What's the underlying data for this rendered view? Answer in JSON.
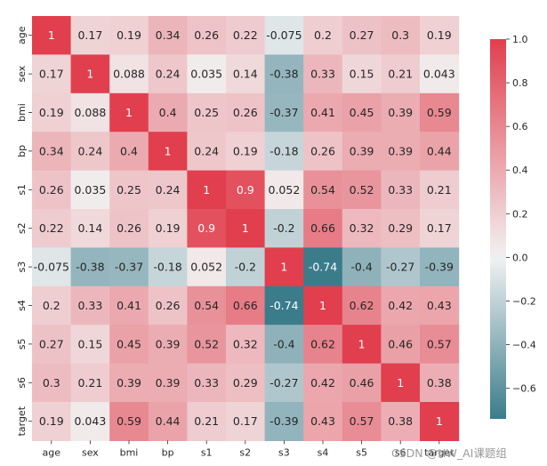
{
  "chart_data": {
    "type": "heatmap",
    "title": "",
    "variables": [
      "age",
      "sex",
      "bmi",
      "bp",
      "s1",
      "s2",
      "s3",
      "s4",
      "s5",
      "s6",
      "target"
    ],
    "values": [
      [
        1,
        0.17,
        0.19,
        0.34,
        0.26,
        0.22,
        -0.075,
        0.2,
        0.27,
        0.3,
        0.19
      ],
      [
        0.17,
        1,
        0.088,
        0.24,
        0.035,
        0.14,
        -0.38,
        0.33,
        0.15,
        0.21,
        0.043
      ],
      [
        0.19,
        0.088,
        1,
        0.4,
        0.25,
        0.26,
        -0.37,
        0.41,
        0.45,
        0.39,
        0.59
      ],
      [
        0.34,
        0.24,
        0.4,
        1,
        0.24,
        0.19,
        -0.18,
        0.26,
        0.39,
        0.39,
        0.44
      ],
      [
        0.26,
        0.035,
        0.25,
        0.24,
        1,
        0.9,
        0.052,
        0.54,
        0.52,
        0.33,
        0.21
      ],
      [
        0.22,
        0.14,
        0.26,
        0.19,
        0.9,
        1,
        -0.2,
        0.66,
        0.32,
        0.29,
        0.17
      ],
      [
        -0.075,
        -0.38,
        -0.37,
        -0.18,
        0.052,
        -0.2,
        1,
        -0.74,
        -0.4,
        -0.27,
        -0.39
      ],
      [
        0.2,
        0.33,
        0.41,
        0.26,
        0.54,
        0.66,
        -0.74,
        1,
        0.62,
        0.42,
        0.43
      ],
      [
        0.27,
        0.15,
        0.45,
        0.39,
        0.52,
        0.32,
        -0.4,
        0.62,
        1,
        0.46,
        0.57
      ],
      [
        0.3,
        0.21,
        0.39,
        0.39,
        0.33,
        0.29,
        -0.27,
        0.42,
        0.46,
        1,
        0.38
      ],
      [
        0.19,
        0.043,
        0.59,
        0.44,
        0.21,
        0.17,
        -0.39,
        0.43,
        0.57,
        0.38,
        1
      ]
    ],
    "value_labels": [
      [
        "1",
        "0.17",
        "0.19",
        "0.34",
        "0.26",
        "0.22",
        "-0.075",
        "0.2",
        "0.27",
        "0.3",
        "0.19"
      ],
      [
        "0.17",
        "1",
        "0.088",
        "0.24",
        "0.035",
        "0.14",
        "-0.38",
        "0.33",
        "0.15",
        "0.21",
        "0.043"
      ],
      [
        "0.19",
        "0.088",
        "1",
        "0.4",
        "0.25",
        "0.26",
        "-0.37",
        "0.41",
        "0.45",
        "0.39",
        "0.59"
      ],
      [
        "0.34",
        "0.24",
        "0.4",
        "1",
        "0.24",
        "0.19",
        "-0.18",
        "0.26",
        "0.39",
        "0.39",
        "0.44"
      ],
      [
        "0.26",
        "0.035",
        "0.25",
        "0.24",
        "1",
        "0.9",
        "0.052",
        "0.54",
        "0.52",
        "0.33",
        "0.21"
      ],
      [
        "0.22",
        "0.14",
        "0.26",
        "0.19",
        "0.9",
        "1",
        "-0.2",
        "0.66",
        "0.32",
        "0.29",
        "0.17"
      ],
      [
        "-0.075",
        "-0.38",
        "-0.37",
        "-0.18",
        "0.052",
        "-0.2",
        "1",
        "-0.74",
        "-0.4",
        "-0.27",
        "-0.39"
      ],
      [
        "0.2",
        "0.33",
        "0.41",
        "0.26",
        "0.54",
        "0.66",
        "-0.74",
        "1",
        "0.62",
        "0.42",
        "0.43"
      ],
      [
        "0.27",
        "0.15",
        "0.45",
        "0.39",
        "0.52",
        "0.32",
        "-0.4",
        "0.62",
        "1",
        "0.46",
        "0.57"
      ],
      [
        "0.3",
        "0.21",
        "0.39",
        "0.39",
        "0.33",
        "0.29",
        "-0.27",
        "0.42",
        "0.46",
        "1",
        "0.38"
      ],
      [
        "0.19",
        "0.043",
        "0.59",
        "0.44",
        "0.21",
        "0.17",
        "-0.39",
        "0.43",
        "0.57",
        "0.38",
        "1"
      ]
    ],
    "colorbar": {
      "vmin": -0.74,
      "vmax": 1.0,
      "ticks": [
        1.0,
        0.8,
        0.6,
        0.4,
        0.2,
        0.0,
        -0.2,
        -0.4,
        -0.6
      ],
      "tick_labels": [
        "1.0",
        "0.8",
        "0.6",
        "0.4",
        "0.2",
        "0.0",
        "−0.2",
        "−0.4",
        "−0.6"
      ]
    },
    "colors": {
      "negative": "#3b7c8b",
      "center": "#f2f2f2",
      "positive": "#e13f4e"
    }
  },
  "watermark": "CSDN @HW_AI课题组"
}
